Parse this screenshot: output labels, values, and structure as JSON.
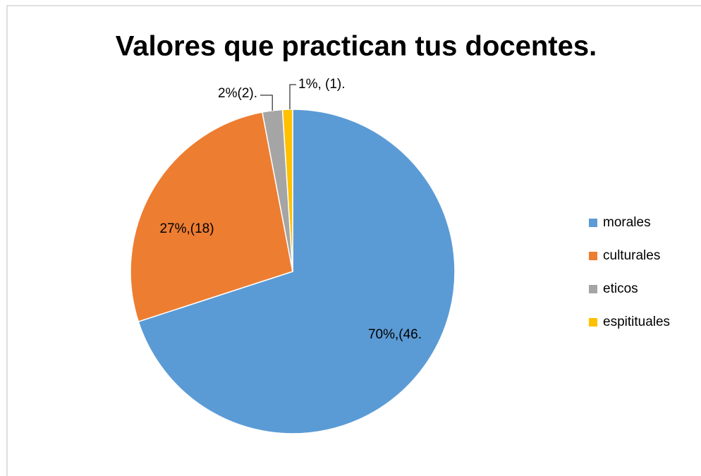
{
  "chart_data": {
    "type": "pie",
    "title": "Valores que practican tus docentes.",
    "categories": [
      "morales",
      "culturales",
      "eticos",
      "espitituales"
    ],
    "values": [
      70,
      27,
      2,
      1
    ],
    "value_labels": [
      "70%,(46.",
      "27%,(18)",
      "2%(2).",
      "1%, (1)."
    ],
    "colors": [
      "#5b9bd5",
      "#ed7d31",
      "#a5a5a5",
      "#ffc000"
    ],
    "legend": "right"
  }
}
